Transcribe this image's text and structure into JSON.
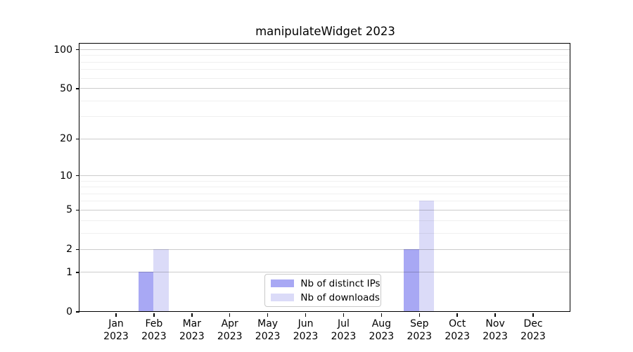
{
  "chart_data": {
    "type": "bar",
    "title": "manipulateWidget 2023",
    "x_year": "2023",
    "categories": [
      "Jan",
      "Feb",
      "Mar",
      "Apr",
      "May",
      "Jun",
      "Jul",
      "Aug",
      "Sep",
      "Oct",
      "Nov",
      "Dec"
    ],
    "series": [
      {
        "key": "distinct-ips",
        "name": "Nb of distinct IPs",
        "color": "#a8a8f4",
        "values": [
          0,
          1,
          0,
          0,
          0,
          0,
          0,
          0,
          2,
          0,
          0,
          0
        ]
      },
      {
        "key": "downloads",
        "name": "Nb of downloads",
        "color": "#dbdbf8",
        "values": [
          0,
          2,
          0,
          0,
          0,
          0,
          0,
          0,
          6,
          0,
          0,
          0
        ]
      }
    ],
    "xlabel": "",
    "ylabel": "",
    "y_scale": "log1p",
    "ylim": [
      0,
      110
    ],
    "y_major_ticks": [
      0,
      1,
      2,
      5,
      10,
      20,
      50,
      100
    ],
    "y_minor_gridlines": [
      3,
      4,
      6,
      7,
      8,
      9,
      30,
      40,
      60,
      70,
      80,
      90
    ],
    "grid": true,
    "legend_position": "lower center"
  },
  "colors": {
    "major_grid": "rgba(0,0,0,0.20)",
    "minor_grid": "rgba(0,0,0,0.06)",
    "spine": "#000000",
    "background": "#ffffff"
  }
}
